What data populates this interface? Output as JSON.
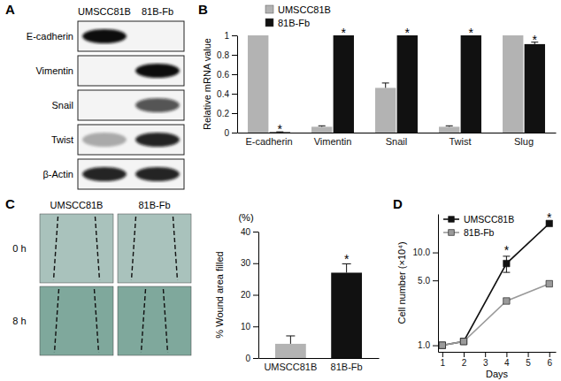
{
  "panel_labels": [
    "A",
    "B",
    "C",
    "D"
  ],
  "blot": {
    "columns": [
      "UMSCC81B",
      "81B-Fb"
    ],
    "rows": [
      {
        "label": "E-cadherin",
        "intensity": [
          1,
          0
        ]
      },
      {
        "label": "Vimentin",
        "intensity": [
          0,
          1
        ]
      },
      {
        "label": "Snail",
        "intensity": [
          0,
          0.7
        ]
      },
      {
        "label": "Twist",
        "intensity": [
          0.3,
          0.9
        ]
      },
      {
        "label": "β-Actin",
        "intensity": [
          0.9,
          0.9
        ]
      }
    ]
  },
  "wound_images": {
    "columns": [
      "UMSCC81B",
      "81B-Fb"
    ],
    "rows": [
      "0 h",
      "8 h"
    ]
  },
  "chart_data": [
    {
      "type": "bar",
      "y_label": "Relative mRNA value",
      "categories": [
        "E-cadherin",
        "Vimentin",
        "Snail",
        "Twist",
        "Slug"
      ],
      "series": [
        {
          "name": "UMSCC81B",
          "color": "#b3b3b3",
          "values": [
            1,
            0.06,
            0.46,
            0.06,
            1
          ],
          "errors": [
            0,
            0.01,
            0.05,
            0.01,
            0
          ]
        },
        {
          "name": "81B-Fb",
          "color": "#111111",
          "values": [
            0.005,
            1,
            1,
            1,
            0.91
          ],
          "errors": [
            0.003,
            0,
            0,
            0,
            0.02
          ]
        }
      ],
      "ylim": [
        0,
        1
      ],
      "yticks": [
        0,
        0.2,
        0.4,
        0.6,
        0.8,
        1
      ],
      "legend": "top-left",
      "annotations": [
        {
          "text": "*",
          "category": 0,
          "series": 1
        },
        {
          "text": "*",
          "category": 1,
          "series": 1
        },
        {
          "text": "*",
          "category": 2,
          "series": 1
        },
        {
          "text": "*",
          "category": 3,
          "series": 1
        },
        {
          "text": "*",
          "category": 4,
          "series": 1
        }
      ]
    },
    {
      "type": "bar",
      "y_label": "% Wound area filled",
      "y_label_top": "(%)",
      "categories": [
        "UMSCC81B",
        "81B-Fb"
      ],
      "values": [
        4.5,
        27
      ],
      "errors": [
        2.5,
        2.8
      ],
      "colors": [
        "#b3b3b3",
        "#111111"
      ],
      "ylim": [
        0,
        40
      ],
      "yticks": [
        0,
        10,
        20,
        30,
        40
      ],
      "annotations": [
        {
          "text": "*",
          "category": 1
        }
      ]
    },
    {
      "type": "line",
      "y_label": "Cell number (×10⁴)",
      "x_label": "Days",
      "x": [
        1,
        2,
        4,
        6
      ],
      "series": [
        {
          "name": "UMSCC81B",
          "color": "#111111",
          "marker": "square",
          "values": [
            1,
            1.1,
            7.6,
            20.5
          ],
          "errors": [
            0,
            0,
            1.5,
            0
          ]
        },
        {
          "name": "81B-Fb",
          "color": "#9a9a9a",
          "marker": "square",
          "values": [
            1,
            1.1,
            3.0,
            4.6
          ]
        }
      ],
      "log": "y",
      "xlim": [
        0.8,
        6.3
      ],
      "xticks": [
        1,
        2,
        3,
        4,
        5,
        6
      ],
      "ylim": [
        0.85,
        26
      ],
      "yticks": [
        {
          "value": 1,
          "label": "1.0"
        },
        {
          "value": 5,
          "label": "5.0"
        },
        {
          "value": 10,
          "label": "10.0"
        }
      ],
      "legend": "top-left",
      "annotations": [
        {
          "text": "*",
          "x": 4,
          "series": 0
        },
        {
          "text": "*",
          "x": 6,
          "series": 0
        }
      ]
    }
  ]
}
